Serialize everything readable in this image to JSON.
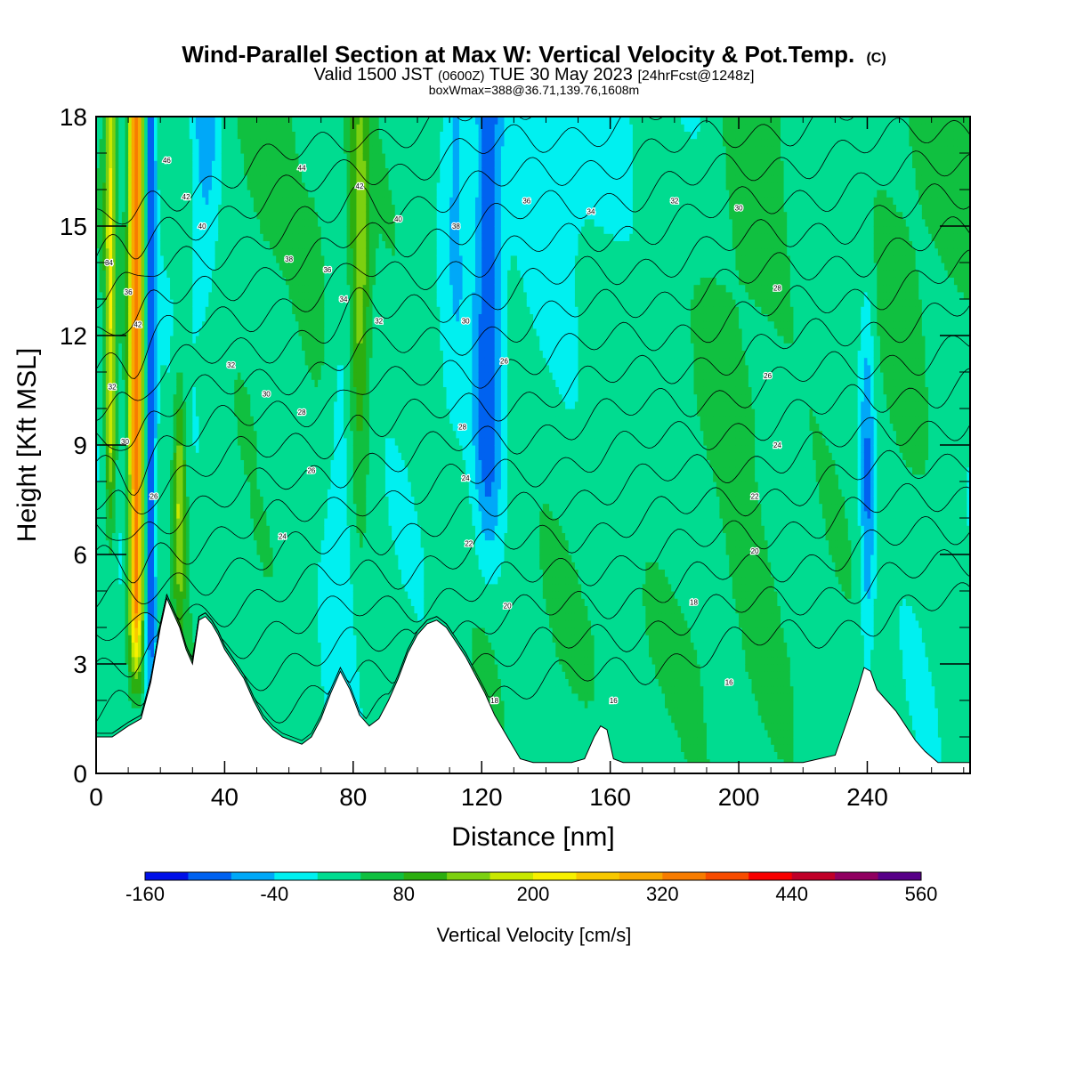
{
  "chart_data": {
    "type": "heatmap",
    "title": "Wind-Parallel Section at Max W: Vertical Velocity & Pot.Temp.",
    "title_mark": "(C)",
    "subtitle_parts": [
      "Valid 1500 JST ",
      "(0600Z)",
      " TUE 30 May 2023 ",
      "[24hrFcst@1248z]"
    ],
    "subtitle2": "boxWmax=388@36.71,139.76,1608m",
    "xlabel": "Distance [nm]",
    "ylabel": "Height [Kft MSL]",
    "xlim": [
      0,
      272
    ],
    "ylim": [
      0,
      18
    ],
    "x_ticks": [
      "0",
      "40",
      "80",
      "120",
      "160",
      "200",
      "240"
    ],
    "x_tick_values": [
      0,
      40,
      80,
      120,
      160,
      200,
      240
    ],
    "y_ticks": [
      "0",
      "3",
      "6",
      "9",
      "12",
      "15",
      "18"
    ],
    "y_tick_values": [
      0,
      3,
      6,
      9,
      12,
      15,
      18
    ],
    "colorbar": {
      "label": "Vertical Velocity [cm/s]",
      "tick_labels": [
        "-160",
        "-40",
        "80",
        "200",
        "320",
        "440",
        "560"
      ],
      "tick_values": [
        -160,
        -40,
        80,
        200,
        320,
        440,
        560
      ],
      "levels": [
        -160,
        -120,
        -80,
        -40,
        0,
        40,
        80,
        120,
        160,
        200,
        240,
        280,
        320,
        360,
        400,
        440,
        480,
        520,
        560
      ],
      "colors": [
        "#0010e8",
        "#0062f0",
        "#00a8f8",
        "#00f0f0",
        "#00dc90",
        "#10c040",
        "#2cae10",
        "#7cd010",
        "#c8e800",
        "#f8f000",
        "#f8c800",
        "#f8a800",
        "#f87c00",
        "#f84c00",
        "#f80000",
        "#c00028",
        "#900060",
        "#580088"
      ]
    },
    "terrain": {
      "x": [
        0,
        5,
        10,
        14,
        17,
        20,
        22,
        24,
        26,
        28,
        30,
        32,
        34,
        36,
        38,
        40,
        43,
        46,
        49,
        52,
        55,
        58,
        61,
        64,
        67,
        70,
        73,
        76,
        79,
        82,
        85,
        88,
        91,
        94,
        97,
        100,
        103,
        106,
        109,
        112,
        115,
        118,
        121,
        124,
        128,
        132,
        136,
        140,
        144,
        148,
        152,
        155,
        157,
        159,
        161,
        164,
        170,
        180,
        190,
        200,
        210,
        220,
        230,
        234,
        237,
        239,
        241,
        243,
        246,
        249,
        252,
        255,
        258,
        262,
        266,
        272
      ],
      "y": [
        1.0,
        1.0,
        1.3,
        1.5,
        2.5,
        4.0,
        4.8,
        4.4,
        4.0,
        3.4,
        3.0,
        4.2,
        4.3,
        4.1,
        3.8,
        3.4,
        3.0,
        2.6,
        2.0,
        1.5,
        1.2,
        1.0,
        0.9,
        0.8,
        1.0,
        1.5,
        2.2,
        2.8,
        2.3,
        1.6,
        1.3,
        1.5,
        2.0,
        2.6,
        3.3,
        3.8,
        4.1,
        4.2,
        4.0,
        3.6,
        3.2,
        2.7,
        2.2,
        1.6,
        1.0,
        0.4,
        0.3,
        0.3,
        0.3,
        0.3,
        0.4,
        1.0,
        1.3,
        1.2,
        0.4,
        0.3,
        0.3,
        0.3,
        0.3,
        0.3,
        0.3,
        0.3,
        0.5,
        1.5,
        2.3,
        2.9,
        2.8,
        2.3,
        2.0,
        1.7,
        1.3,
        0.9,
        0.6,
        0.3,
        0.3,
        0.3
      ]
    },
    "theta_levels": [
      14,
      16,
      18,
      20,
      22,
      24,
      26,
      28,
      30,
      32,
      34,
      36,
      38,
      40,
      42,
      44,
      46
    ],
    "contour_labels": [
      {
        "text": "46",
        "x": 22,
        "y": 16.8
      },
      {
        "text": "44",
        "x": 64,
        "y": 16.6
      },
      {
        "text": "42",
        "x": 28,
        "y": 15.8
      },
      {
        "text": "40",
        "x": 33,
        "y": 15.0
      },
      {
        "text": "42",
        "x": 82,
        "y": 16.1
      },
      {
        "text": "40",
        "x": 94,
        "y": 15.2
      },
      {
        "text": "38",
        "x": 112,
        "y": 15.0
      },
      {
        "text": "36",
        "x": 134,
        "y": 15.7
      },
      {
        "text": "34",
        "x": 154,
        "y": 15.4
      },
      {
        "text": "32",
        "x": 180,
        "y": 15.7
      },
      {
        "text": "30",
        "x": 200,
        "y": 15.5
      },
      {
        "text": "38",
        "x": 60,
        "y": 14.1
      },
      {
        "text": "36",
        "x": 72,
        "y": 13.8
      },
      {
        "text": "34",
        "x": 77,
        "y": 13.0
      },
      {
        "text": "28",
        "x": 212,
        "y": 13.3
      },
      {
        "text": "32",
        "x": 88,
        "y": 12.4
      },
      {
        "text": "30",
        "x": 115,
        "y": 12.4
      },
      {
        "text": "26",
        "x": 127,
        "y": 11.3
      },
      {
        "text": "32",
        "x": 42,
        "y": 11.2
      },
      {
        "text": "26",
        "x": 209,
        "y": 10.9
      },
      {
        "text": "30",
        "x": 53,
        "y": 10.4
      },
      {
        "text": "28",
        "x": 64,
        "y": 9.9
      },
      {
        "text": "28",
        "x": 114,
        "y": 9.5
      },
      {
        "text": "24",
        "x": 212,
        "y": 9.0
      },
      {
        "text": "26",
        "x": 67,
        "y": 8.3
      },
      {
        "text": "24",
        "x": 115,
        "y": 8.1
      },
      {
        "text": "26",
        "x": 18,
        "y": 7.6
      },
      {
        "text": "22",
        "x": 205,
        "y": 7.6
      },
      {
        "text": "24",
        "x": 58,
        "y": 6.5
      },
      {
        "text": "22",
        "x": 116,
        "y": 6.3
      },
      {
        "text": "20",
        "x": 205,
        "y": 6.1
      },
      {
        "text": "20",
        "x": 128,
        "y": 4.6
      },
      {
        "text": "18",
        "x": 186,
        "y": 4.7
      },
      {
        "text": "18",
        "x": 124,
        "y": 2.0
      },
      {
        "text": "16",
        "x": 197,
        "y": 2.5
      },
      {
        "text": "16",
        "x": 161,
        "y": 2.0
      },
      {
        "text": "34",
        "x": 4,
        "y": 14.0
      },
      {
        "text": "36",
        "x": 10,
        "y": 13.2
      },
      {
        "text": "42",
        "x": 13,
        "y": 12.3
      },
      {
        "text": "32",
        "x": 5,
        "y": 10.6
      },
      {
        "text": "30",
        "x": 9,
        "y": 9.1
      }
    ]
  }
}
